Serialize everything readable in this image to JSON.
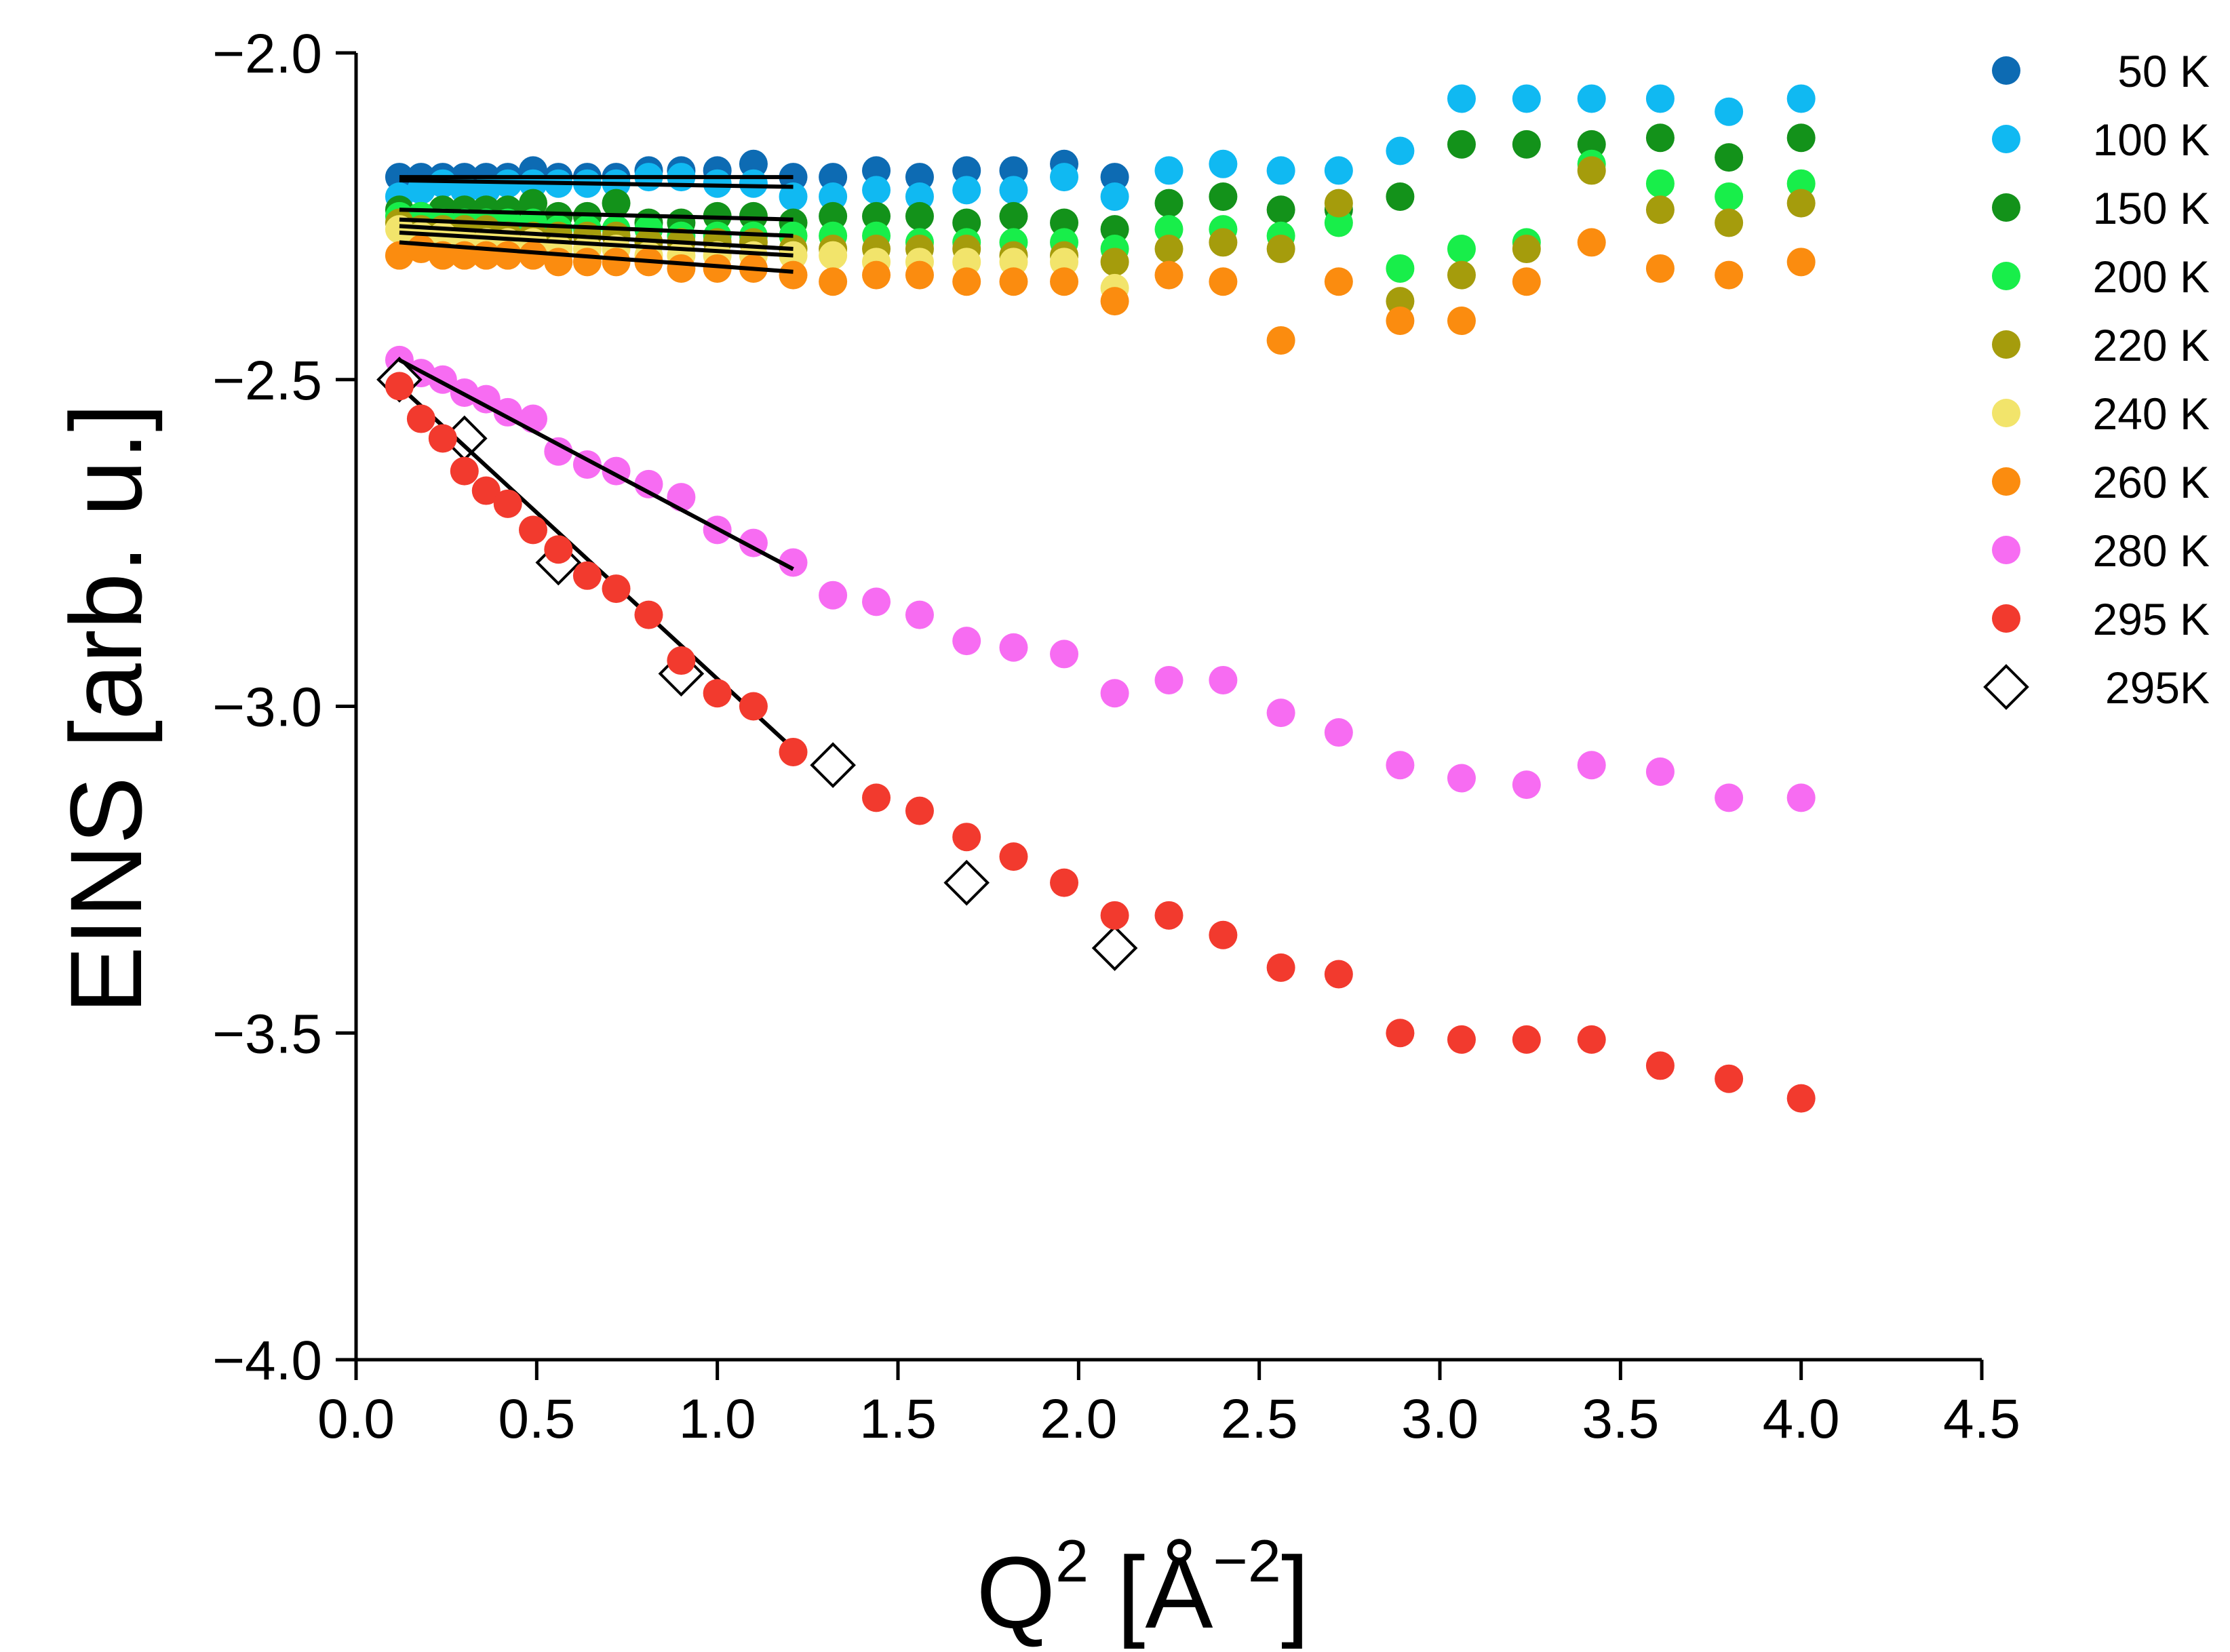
{
  "chart_data": {
    "type": "scatter",
    "title": "",
    "xlabel": "Q",
    "xlabel_sup": "2",
    "xlabel_unit_open": " [Å",
    "xlabel_unit_sup": "−2",
    "xlabel_unit_close": "]",
    "ylabel": "EINS [arb. u.]",
    "xlim": [
      0.0,
      4.5
    ],
    "ylim": [
      -4.0,
      -2.0
    ],
    "xticks": [
      "0.0",
      "0.5",
      "1.0",
      "1.5",
      "2.0",
      "2.5",
      "3.0",
      "3.5",
      "4.0",
      "4.5"
    ],
    "xtick_values": [
      0.0,
      0.5,
      1.0,
      1.5,
      2.0,
      2.5,
      3.0,
      3.5,
      4.0,
      4.5
    ],
    "yticks": [
      "−2.0",
      "−2.5",
      "−3.0",
      "−3.5",
      "−4.0"
    ],
    "ytick_values": [
      -2.0,
      -2.5,
      -3.0,
      -3.5,
      -4.0
    ],
    "grid": false,
    "legend_position": "top-right",
    "x": [
      0.12,
      0.18,
      0.24,
      0.3,
      0.36,
      0.42,
      0.49,
      0.56,
      0.64,
      0.72,
      0.81,
      0.9,
      1.0,
      1.1,
      1.21,
      1.32,
      1.44,
      1.56,
      1.69,
      1.82,
      1.96,
      2.1,
      2.25,
      2.4,
      2.56,
      2.72,
      2.89,
      3.06,
      3.24,
      3.42,
      3.61,
      3.8,
      4.0
    ],
    "series": [
      {
        "name": "50 K",
        "color": "#0d6bb3",
        "marker": "circle",
        "values": [
          -2.19,
          -2.19,
          -2.19,
          -2.19,
          -2.19,
          -2.19,
          -2.18,
          -2.19,
          -2.19,
          -2.19,
          -2.18,
          -2.18,
          -2.18,
          -2.17,
          -2.19,
          -2.19,
          -2.18,
          -2.19,
          -2.18,
          -2.18,
          -2.17,
          -2.19,
          null,
          null,
          null,
          null,
          null,
          null,
          null,
          null,
          null,
          null,
          null
        ]
      },
      {
        "name": "100 K",
        "color": "#10b9f2",
        "marker": "circle",
        "values": [
          -2.22,
          -2.21,
          -2.2,
          -2.21,
          -2.21,
          -2.2,
          -2.2,
          -2.2,
          -2.2,
          -2.2,
          -2.19,
          -2.19,
          -2.2,
          -2.2,
          -2.22,
          -2.22,
          -2.21,
          -2.22,
          -2.21,
          -2.21,
          -2.19,
          -2.22,
          -2.18,
          -2.17,
          -2.18,
          -2.18,
          -2.15,
          -2.07,
          -2.07,
          -2.07,
          -2.07,
          -2.09,
          -2.07
        ]
      },
      {
        "name": "150 K",
        "color": "#13921a",
        "marker": "circle",
        "values": [
          -2.24,
          -2.25,
          -2.24,
          -2.24,
          -2.24,
          -2.24,
          -2.23,
          -2.25,
          -2.25,
          -2.23,
          -2.26,
          -2.26,
          -2.25,
          -2.25,
          -2.26,
          -2.25,
          -2.25,
          -2.25,
          -2.26,
          -2.25,
          -2.26,
          -2.27,
          -2.23,
          -2.22,
          -2.24,
          -2.24,
          -2.22,
          -2.14,
          -2.14,
          -2.14,
          -2.13,
          -2.16,
          -2.13
        ]
      },
      {
        "name": "200 K",
        "color": "#18ee4a",
        "marker": "circle",
        "values": [
          -2.25,
          -2.25,
          -2.26,
          -2.26,
          -2.26,
          -2.26,
          -2.26,
          -2.27,
          -2.27,
          -2.27,
          -2.27,
          -2.28,
          -2.28,
          -2.28,
          -2.28,
          -2.28,
          -2.28,
          -2.29,
          -2.29,
          -2.29,
          -2.29,
          -2.3,
          -2.27,
          -2.27,
          -2.28,
          -2.26,
          -2.33,
          -2.3,
          -2.29,
          -2.17,
          -2.2,
          -2.22,
          -2.2
        ]
      },
      {
        "name": "220 K",
        "color": "#a59c0c",
        "marker": "circle",
        "values": [
          -2.26,
          -2.27,
          -2.27,
          -2.27,
          -2.27,
          -2.28,
          -2.28,
          -2.28,
          -2.28,
          -2.28,
          -2.29,
          -2.29,
          -2.29,
          -2.29,
          -2.3,
          -2.3,
          -2.3,
          -2.3,
          -2.3,
          -2.31,
          -2.31,
          -2.32,
          -2.3,
          -2.29,
          -2.3,
          -2.23,
          -2.38,
          -2.34,
          -2.3,
          -2.18,
          -2.24,
          -2.26,
          -2.23
        ]
      },
      {
        "name": "240 K",
        "color": "#f2e46b",
        "marker": "circle",
        "values": [
          -2.27,
          -2.28,
          -2.28,
          -2.29,
          -2.29,
          -2.29,
          -2.29,
          -2.3,
          -2.3,
          -2.3,
          -2.31,
          -2.31,
          -2.31,
          -2.31,
          -2.31,
          -2.31,
          -2.32,
          -2.32,
          -2.32,
          -2.32,
          -2.32,
          -2.36,
          null,
          null,
          null,
          null,
          null,
          null,
          null,
          null,
          null,
          null,
          null
        ]
      },
      {
        "name": "260 K",
        "color": "#fb8c0f",
        "marker": "circle",
        "values": [
          -2.31,
          -2.3,
          -2.31,
          -2.31,
          -2.31,
          -2.31,
          -2.31,
          -2.32,
          -2.32,
          -2.32,
          -2.32,
          -2.33,
          -2.33,
          -2.33,
          -2.34,
          -2.35,
          -2.34,
          -2.34,
          -2.35,
          -2.35,
          -2.35,
          -2.38,
          -2.34,
          -2.35,
          -2.44,
          -2.35,
          -2.41,
          -2.41,
          -2.35,
          -2.29,
          -2.33,
          -2.34,
          -2.32
        ]
      },
      {
        "name": "280 K",
        "color": "#f76cf2",
        "marker": "circle",
        "values": [
          -2.47,
          -2.49,
          -2.5,
          -2.52,
          -2.53,
          -2.55,
          -2.56,
          -2.61,
          -2.63,
          -2.64,
          -2.66,
          -2.68,
          -2.73,
          -2.75,
          -2.78,
          -2.83,
          -2.84,
          -2.86,
          -2.9,
          -2.91,
          -2.92,
          -2.98,
          -2.96,
          -2.96,
          -3.01,
          -3.04,
          -3.09,
          -3.11,
          -3.12,
          -3.09,
          -3.1,
          -3.14,
          -3.14
        ]
      },
      {
        "name": "295 K",
        "color": "#f23a2e",
        "marker": "circle",
        "values": [
          -2.51,
          -2.56,
          -2.59,
          -2.64,
          -2.67,
          -2.69,
          -2.73,
          -2.76,
          -2.8,
          -2.82,
          -2.86,
          -2.93,
          -2.98,
          -3.0,
          -3.07,
          null,
          -3.14,
          -3.16,
          -3.2,
          -3.23,
          -3.27,
          -3.32,
          -3.32,
          -3.35,
          -3.4,
          -3.41,
          -3.5,
          -3.51,
          -3.51,
          -3.51,
          -3.55,
          -3.57,
          -3.6
        ]
      },
      {
        "name": "295K",
        "color": "#000000",
        "marker": "diamond-open",
        "points": [
          [
            0.12,
            -2.5
          ],
          [
            0.3,
            -2.59
          ],
          [
            0.56,
            -2.78
          ],
          [
            0.9,
            -2.95
          ],
          [
            1.32,
            -3.09
          ],
          [
            1.69,
            -3.27
          ],
          [
            2.1,
            -3.37
          ]
        ]
      }
    ],
    "fit_lines": [
      {
        "name": "fit 50 K",
        "x": [
          0.12,
          1.21
        ],
        "y": [
          -2.19,
          -2.19
        ]
      },
      {
        "name": "fit 100 K",
        "x": [
          0.12,
          1.21
        ],
        "y": [
          -2.195,
          -2.205
        ]
      },
      {
        "name": "fit 150 K",
        "x": [
          0.12,
          1.21
        ],
        "y": [
          -2.24,
          -2.255
        ]
      },
      {
        "name": "fit 200 K",
        "x": [
          0.12,
          1.21
        ],
        "y": [
          -2.255,
          -2.28
        ]
      },
      {
        "name": "fit 220 K",
        "x": [
          0.12,
          1.21
        ],
        "y": [
          -2.265,
          -2.3
        ]
      },
      {
        "name": "fit 240 K",
        "x": [
          0.12,
          1.21
        ],
        "y": [
          -2.275,
          -2.31
        ]
      },
      {
        "name": "fit 260 K",
        "x": [
          0.12,
          1.21
        ],
        "y": [
          -2.29,
          -2.335
        ]
      },
      {
        "name": "fit 280 K",
        "x": [
          0.12,
          1.21
        ],
        "y": [
          -2.47,
          -2.79
        ]
      },
      {
        "name": "fit 295 K",
        "x": [
          0.12,
          1.21
        ],
        "y": [
          -2.51,
          -3.065
        ]
      }
    ]
  }
}
